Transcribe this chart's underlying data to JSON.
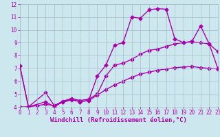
{
  "background_color": "#cce8ee",
  "grid_color": "#aabbcc",
  "line_color": "#aa00aa",
  "xlabel": "Windchill (Refroidissement éolien,°C)",
  "xlim": [
    0,
    23
  ],
  "ylim": [
    4,
    12
  ],
  "xticks": [
    0,
    1,
    2,
    3,
    4,
    5,
    6,
    7,
    8,
    9,
    10,
    11,
    12,
    13,
    14,
    15,
    16,
    17,
    18,
    19,
    20,
    21,
    22,
    23
  ],
  "yticks": [
    4,
    5,
    6,
    7,
    8,
    9,
    10,
    11,
    12
  ],
  "series1_x": [
    0,
    1,
    3,
    4,
    5,
    6,
    7,
    8,
    9,
    10,
    11,
    12,
    13,
    14,
    15,
    16,
    17,
    18,
    19,
    20,
    21,
    22,
    23
  ],
  "series1_y": [
    7.2,
    4.0,
    4.4,
    4.0,
    4.4,
    4.6,
    4.4,
    4.5,
    6.4,
    7.25,
    8.8,
    9.0,
    11.0,
    10.9,
    11.55,
    11.65,
    11.6,
    9.3,
    9.0,
    9.1,
    10.3,
    8.9,
    7.0
  ],
  "series2_x": [
    0,
    1,
    3,
    4,
    5,
    6,
    7,
    8,
    9,
    10,
    11,
    12,
    13,
    14,
    15,
    16,
    17,
    18,
    19,
    20,
    21,
    22,
    23
  ],
  "series2_y": [
    7.2,
    4.0,
    5.1,
    4.1,
    4.45,
    4.65,
    4.5,
    4.6,
    5.0,
    6.4,
    7.25,
    7.4,
    7.7,
    8.1,
    8.4,
    8.5,
    8.7,
    8.9,
    9.0,
    9.05,
    9.0,
    8.9,
    8.3
  ],
  "series3_x": [
    0,
    1,
    2,
    3,
    4,
    5,
    6,
    7,
    8,
    9,
    10,
    11,
    12,
    13,
    14,
    15,
    16,
    17,
    18,
    19,
    20,
    21,
    22,
    23
  ],
  "series3_y": [
    4.0,
    4.0,
    4.1,
    4.2,
    4.1,
    4.35,
    4.55,
    4.4,
    4.5,
    4.9,
    5.35,
    5.7,
    6.0,
    6.3,
    6.55,
    6.7,
    6.85,
    6.95,
    7.05,
    7.1,
    7.15,
    7.05,
    7.0,
    6.95
  ],
  "marker": "D",
  "markersize": 2.5,
  "linewidth": 1.0,
  "tick_fontsize": 5.5,
  "label_fontsize": 6.5
}
